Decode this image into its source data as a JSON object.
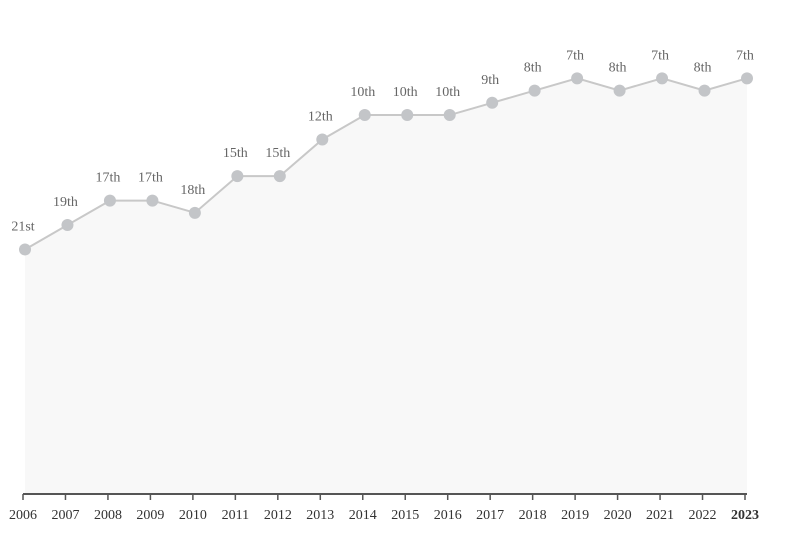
{
  "chart_data": {
    "type": "line",
    "title": "",
    "xlabel": "",
    "ylabel": "",
    "x": [
      "2006",
      "2007",
      "2008",
      "2009",
      "2010",
      "2011",
      "2012",
      "2013",
      "2014",
      "2015",
      "2016",
      "2017",
      "2018",
      "2019",
      "2020",
      "2021",
      "2022",
      "2023"
    ],
    "values": [
      21,
      19,
      17,
      17,
      18,
      15,
      15,
      12,
      10,
      10,
      10,
      9,
      8,
      7,
      8,
      7,
      8,
      7
    ],
    "data_labels": [
      "21st",
      "19th",
      "17th",
      "17th",
      "18th",
      "15th",
      "15th",
      "12th",
      "10th",
      "10th",
      "10th",
      "9th",
      "8th",
      "7th",
      "8th",
      "7th",
      "8th",
      "7th"
    ],
    "highlight_x": "2023",
    "ylim": [
      41,
      1
    ],
    "y_inverted": true,
    "grid": false,
    "colors": {
      "line": "#c8c8c8",
      "marker": "#c3c5c8",
      "area": "#f8f8f8",
      "axis": "#555555",
      "label": "#666666"
    }
  }
}
